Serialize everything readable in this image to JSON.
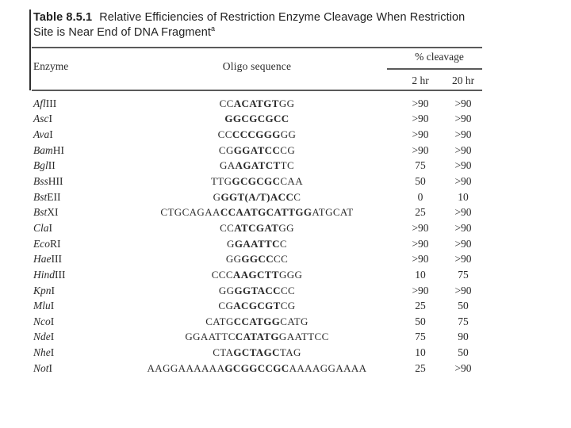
{
  "title": {
    "label": "Table 8.5.1",
    "line1_rest": "Relative Efficiencies of Restriction Enzyme Cleavage When Restriction",
    "line2": "Site is Near End of DNA Fragment",
    "footnote_marker": "a"
  },
  "header": {
    "enzyme": "Enzyme",
    "oligo": "Oligo sequence",
    "cleavage_group": "% cleavage",
    "col_2hr": "2 hr",
    "col_20hr": "20 hr"
  },
  "rows": [
    {
      "enzyme": {
        "italic": "Afl",
        "roman": "III"
      },
      "seq": {
        "pre": "CC",
        "site": "ACATGT",
        "post": "GG"
      },
      "c2": ">90",
      "c20": ">90"
    },
    {
      "enzyme": {
        "italic": "Asc",
        "roman": "I"
      },
      "seq": {
        "pre": "",
        "site": "GGCGCGCC",
        "post": ""
      },
      "c2": ">90",
      "c20": ">90"
    },
    {
      "enzyme": {
        "italic": "Ava",
        "roman": "I"
      },
      "seq": {
        "pre": "CC",
        "site": "CCCGGG",
        "post": "GG"
      },
      "c2": ">90",
      "c20": ">90"
    },
    {
      "enzyme": {
        "italic": "Bam",
        "roman": "HI"
      },
      "seq": {
        "pre": "CG",
        "site": "GGATCC",
        "post": "CG"
      },
      "c2": ">90",
      "c20": ">90"
    },
    {
      "enzyme": {
        "italic": "Bgl",
        "roman": "II"
      },
      "seq": {
        "pre": "GA",
        "site": "AGATCT",
        "post": "TC"
      },
      "c2": "75",
      "c20": ">90"
    },
    {
      "enzyme": {
        "italic": "Bss",
        "roman": "HII"
      },
      "seq": {
        "pre": "TTG",
        "site": "GCGCGC",
        "post": "CAA"
      },
      "c2": "50",
      "c20": ">90"
    },
    {
      "enzyme": {
        "italic": "Bst",
        "roman": "EII"
      },
      "seq": {
        "pre": "G",
        "site": "GGT(A/T)ACC",
        "post": "C"
      },
      "c2": "0",
      "c20": "10"
    },
    {
      "enzyme": {
        "italic": "Bst",
        "roman": "XI"
      },
      "seq": {
        "pre": "CTGCAGAA",
        "site": "CCAATGCATTGG",
        "post": "ATGCAT"
      },
      "c2": "25",
      "c20": ">90"
    },
    {
      "enzyme": {
        "italic": "Cla",
        "roman": "I"
      },
      "seq": {
        "pre": "CC",
        "site": "ATCGAT",
        "post": "GG"
      },
      "c2": ">90",
      "c20": ">90"
    },
    {
      "enzyme": {
        "italic": "Eco",
        "roman": "RI"
      },
      "seq": {
        "pre": "G",
        "site": "GAATTC",
        "post": "C"
      },
      "c2": ">90",
      "c20": ">90"
    },
    {
      "enzyme": {
        "italic": "Hae",
        "roman": "III"
      },
      "seq": {
        "pre": "GG",
        "site": "GGCC",
        "post": "CC"
      },
      "c2": ">90",
      "c20": ">90"
    },
    {
      "enzyme": {
        "italic": "Hind",
        "roman": "III"
      },
      "seq": {
        "pre": "CCC",
        "site": "AAGCTT",
        "post": "GGG"
      },
      "c2": "10",
      "c20": "75"
    },
    {
      "enzyme": {
        "italic": "Kpn",
        "roman": "I"
      },
      "seq": {
        "pre": "GG",
        "site": "GGTACC",
        "post": "CC"
      },
      "c2": ">90",
      "c20": ">90"
    },
    {
      "enzyme": {
        "italic": "Mlu",
        "roman": "I"
      },
      "seq": {
        "pre": "CG",
        "site": "ACGCGT",
        "post": "CG"
      },
      "c2": "25",
      "c20": "50"
    },
    {
      "enzyme": {
        "italic": "Nco",
        "roman": "I"
      },
      "seq": {
        "pre": "CATG",
        "site": "CCATGG",
        "post": "CATG"
      },
      "c2": "50",
      "c20": "75"
    },
    {
      "enzyme": {
        "italic": "Nde",
        "roman": "I"
      },
      "seq": {
        "pre": "GGAATTC",
        "site": "CATATG",
        "post": "GAATTCC"
      },
      "c2": "75",
      "c20": "90"
    },
    {
      "enzyme": {
        "italic": "Nhe",
        "roman": "I"
      },
      "seq": {
        "pre": "CTA",
        "site": "GCTAGC",
        "post": "TAG"
      },
      "c2": "10",
      "c20": "50"
    },
    {
      "enzyme": {
        "italic": "Not",
        "roman": "I"
      },
      "seq": {
        "pre": "AAGGAAAAAA",
        "site": "GCGGCCGC",
        "post": "AAAAGGAAAA"
      },
      "c2": "25",
      "c20": ">90"
    }
  ],
  "colors": {
    "text": "#2a2a2a",
    "rule": "#5a5a5a",
    "background": "#ffffff"
  }
}
